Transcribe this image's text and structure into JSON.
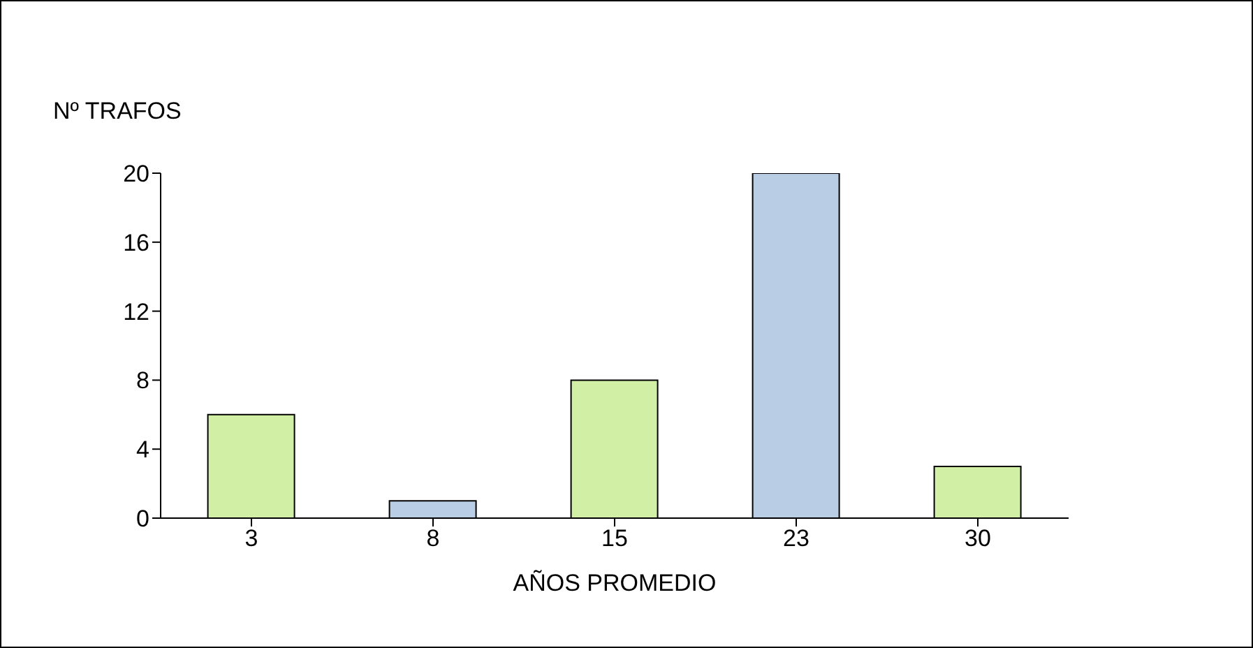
{
  "chart_data": {
    "type": "bar",
    "ylabel": "Nº TRAFOS",
    "xlabel": "AÑOS PROMEDIO",
    "categories": [
      "3",
      "8",
      "15",
      "23",
      "30"
    ],
    "values": [
      6,
      1,
      8,
      20,
      3
    ],
    "colors": [
      "#d2efa6",
      "#b9cde5",
      "#d2efa6",
      "#b9cde5",
      "#d2efa6"
    ],
    "ylim": [
      0,
      20
    ],
    "yticks": [
      0,
      4,
      8,
      12,
      16,
      20
    ],
    "grid": false
  }
}
